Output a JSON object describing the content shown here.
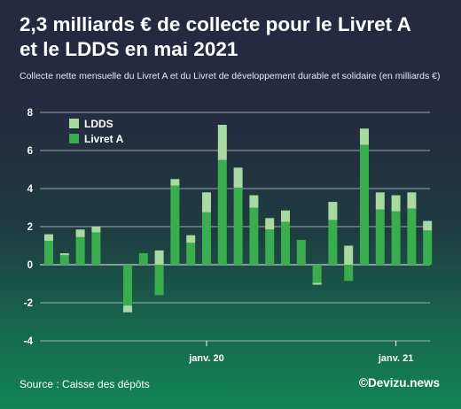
{
  "title_line1": "2,3 milliards € de collecte pour le Livret A",
  "title_line2": "et le LDDS en mai 2021",
  "subtitle": "Collecte nette mensuelle du Livret A et du Livret de développement durable et solidaire (en milliards €)",
  "source": "Source : Caisse des dépôts",
  "brand": "©Devizu.news",
  "colors": {
    "livret_a": "#3aad4f",
    "ldds": "#a7d9a1",
    "grid": "#ffffff",
    "text": "#ffffff"
  },
  "chart_data": {
    "type": "bar",
    "stacked": true,
    "legend_position": "top-left",
    "grid": true,
    "ylim": [
      -4,
      8
    ],
    "yticks": [
      8,
      6,
      4,
      2,
      0,
      -2,
      -4
    ],
    "x_tick_labels": [
      {
        "label": "janv. 20",
        "index": 10
      },
      {
        "label": "janv. 21",
        "index": 22
      }
    ],
    "series": [
      {
        "name": "Livret A",
        "values": [
          1.25,
          0.5,
          1.45,
          1.7,
          null,
          -2.15,
          0.6,
          -1.6,
          4.15,
          1.15,
          2.75,
          5.5,
          4.05,
          3.0,
          1.85,
          2.25,
          1.3,
          -0.95,
          2.35,
          -0.85,
          6.3,
          2.9,
          2.8,
          2.95,
          1.8
        ]
      },
      {
        "name": "LDDS",
        "values": [
          0.35,
          0.1,
          0.4,
          0.3,
          null,
          -0.35,
          0.0,
          0.75,
          0.35,
          0.4,
          1.05,
          1.85,
          1.05,
          0.65,
          0.6,
          0.6,
          0.0,
          -0.1,
          0.95,
          1.0,
          0.85,
          0.9,
          0.85,
          0.85,
          0.5
        ]
      }
    ]
  }
}
